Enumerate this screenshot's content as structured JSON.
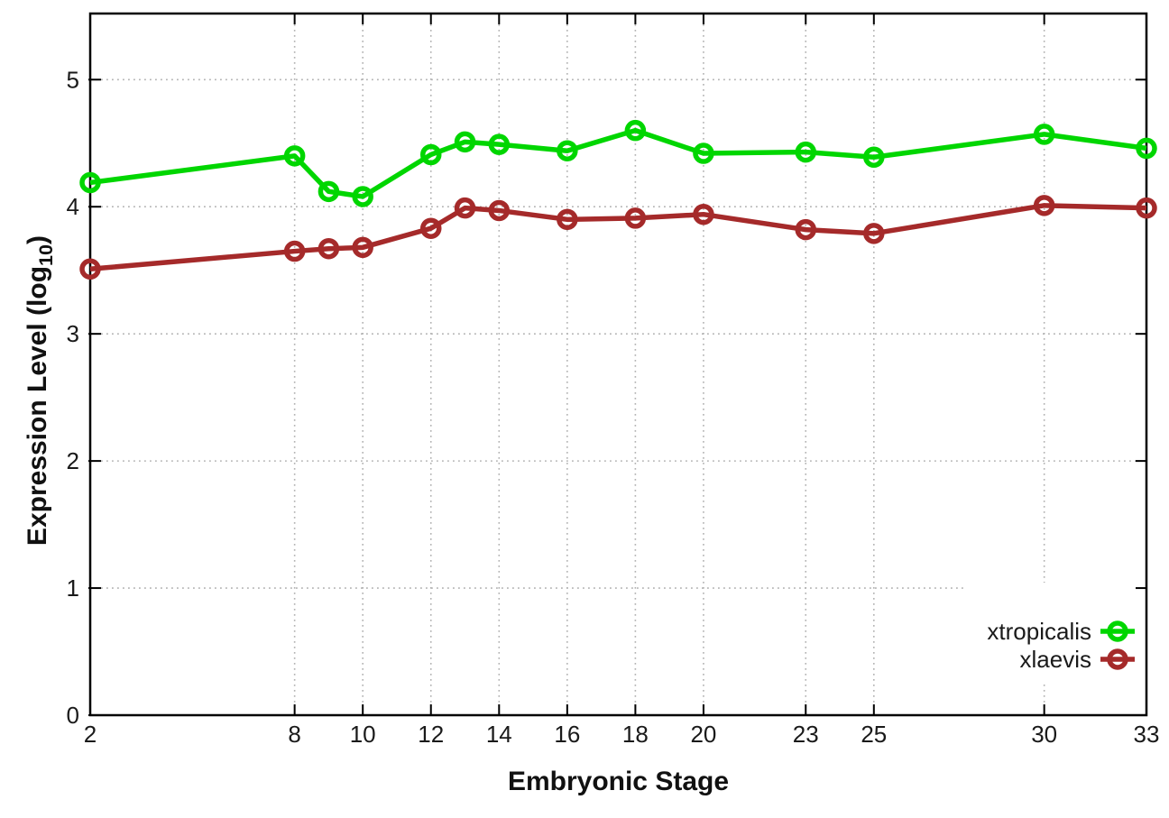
{
  "page": {
    "background": "#ffffff"
  },
  "chart_data": {
    "type": "line",
    "title": "",
    "xlabel": "Embryonic Stage",
    "ylabel": "Expression Level (log10)",
    "ylabel_parts": {
      "main": "Expression Level (log",
      "sub": "10",
      "end": ")"
    },
    "xlim": [
      2,
      33
    ],
    "ylim": [
      0,
      5.52
    ],
    "x_ticks": [
      2,
      8,
      10,
      12,
      14,
      16,
      18,
      20,
      23,
      25,
      30,
      33
    ],
    "y_ticks": [
      0,
      1,
      2,
      3,
      4,
      5
    ],
    "grid": true,
    "legend_position": "inside-right-lower",
    "marker": "open-circle",
    "x": [
      2,
      8,
      9,
      10,
      12,
      13,
      14,
      16,
      18,
      20,
      23,
      25,
      30,
      33
    ],
    "series": [
      {
        "name": "xtropicalis",
        "color": "#00d600",
        "values": [
          4.19,
          4.4,
          4.12,
          4.08,
          4.41,
          4.51,
          4.49,
          4.44,
          4.6,
          4.42,
          4.43,
          4.39,
          4.57,
          4.46
        ]
      },
      {
        "name": "xlaevis",
        "color": "#a52a2a",
        "values": [
          3.51,
          3.65,
          3.67,
          3.68,
          3.83,
          3.99,
          3.97,
          3.9,
          3.91,
          3.94,
          3.82,
          3.79,
          4.01,
          3.99
        ]
      }
    ],
    "colors": {
      "axis": "#000000",
      "grid": "#b3b3b3",
      "text": "#1a1a1a",
      "background": "#ffffff"
    }
  }
}
